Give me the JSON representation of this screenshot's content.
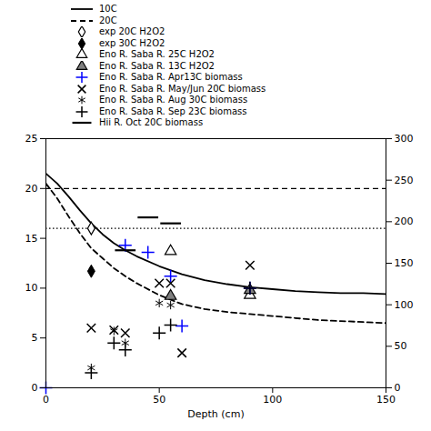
{
  "chart_data": {
    "type": "scatter",
    "xlabel": "Depth (cm)",
    "xlim": [
      0,
      150
    ],
    "xticks": [
      0,
      50,
      100,
      150
    ],
    "ylim": [
      0,
      25
    ],
    "yticks": [
      0,
      5,
      10,
      15,
      20,
      25
    ],
    "y2lim": [
      0,
      300
    ],
    "y2ticks": [
      0,
      50,
      100,
      150,
      200,
      250,
      300
    ],
    "grid": false,
    "legend": "top",
    "reference_lines": [
      {
        "y": 20,
        "line_style": "dashed",
        "color": "black"
      },
      {
        "y": 16,
        "line_style": "dotted",
        "color": "black"
      }
    ],
    "series": [
      {
        "name": "10C",
        "type": "line",
        "line_style": "solid",
        "color": "black",
        "x": [
          0,
          5,
          10,
          15,
          20,
          25,
          30,
          35,
          40,
          50,
          60,
          70,
          80,
          90,
          100,
          110,
          120,
          130,
          140,
          150
        ],
        "values": [
          21.5,
          20.5,
          19.2,
          17.8,
          16.5,
          15.4,
          14.5,
          13.8,
          13.2,
          12.2,
          11.4,
          10.8,
          10.4,
          10.1,
          9.9,
          9.7,
          9.6,
          9.5,
          9.5,
          9.4
        ]
      },
      {
        "name": "20C",
        "type": "line",
        "line_style": "dashed",
        "color": "black",
        "x": [
          0,
          5,
          10,
          15,
          20,
          25,
          30,
          35,
          40,
          50,
          60,
          70,
          80,
          90,
          100,
          110,
          120,
          130,
          140,
          150
        ],
        "values": [
          20.5,
          19.0,
          17.2,
          15.5,
          14.0,
          13.0,
          12.0,
          11.2,
          10.5,
          9.3,
          8.4,
          7.9,
          7.6,
          7.4,
          7.2,
          7.0,
          6.8,
          6.7,
          6.6,
          6.5
        ]
      },
      {
        "name": "exp 20C H2O2",
        "type": "scatter",
        "marker": "diamond_open",
        "color": "black",
        "x": [
          20
        ],
        "values": [
          16.0
        ]
      },
      {
        "name": "exp 30C H2O2",
        "type": "scatter",
        "marker": "diamond",
        "color": "black",
        "x": [
          20
        ],
        "values": [
          11.7
        ]
      },
      {
        "name": "Eno R. Saba R. 25C H2O2",
        "type": "scatter",
        "marker": "triangle_open",
        "color": "black",
        "x": [
          55,
          90
        ],
        "values": [
          13.7,
          9.3
        ]
      },
      {
        "name": "Eno R. Saba R. 13C H2O2",
        "type": "scatter",
        "marker": "triangle",
        "color": "#808080",
        "x": [
          55,
          90
        ],
        "values": [
          9.2,
          9.8
        ]
      },
      {
        "name": "Eno R. Saba R. Apr13C biomass",
        "type": "scatter",
        "marker": "plus",
        "color": "blue",
        "x": [
          0,
          35,
          45,
          55,
          60,
          90
        ],
        "values": [
          0.0,
          14.3,
          13.6,
          11.2,
          6.2,
          10.0
        ]
      },
      {
        "name": "Eno R. Saba R. May/Jun 20C biomass",
        "type": "scatter",
        "marker": "times",
        "color": "black",
        "x": [
          20,
          30,
          35,
          50,
          55,
          60,
          90
        ],
        "values": [
          6.0,
          5.8,
          5.5,
          10.5,
          10.5,
          3.5,
          12.3
        ]
      },
      {
        "name": "Eno R. Saba R. Aug 30C biomass",
        "type": "scatter",
        "marker": "asterisk",
        "color": "black",
        "x": [
          20,
          30,
          35,
          50,
          55
        ],
        "values": [
          2.0,
          5.7,
          4.5,
          8.5,
          8.3
        ]
      },
      {
        "name": "Eno R. Saba R. Sep 23C biomass",
        "type": "scatter",
        "marker": "plus",
        "color": "black",
        "x": [
          20,
          30,
          35,
          50,
          55,
          90
        ],
        "values": [
          1.5,
          4.5,
          3.8,
          5.5,
          6.3,
          10.0
        ]
      },
      {
        "name": "Hii R. Oct 20C biomass",
        "type": "scatter",
        "marker": "dash",
        "color": "black",
        "x": [
          35,
          45,
          55
        ],
        "values": [
          13.8,
          17.1,
          16.5
        ]
      }
    ]
  }
}
